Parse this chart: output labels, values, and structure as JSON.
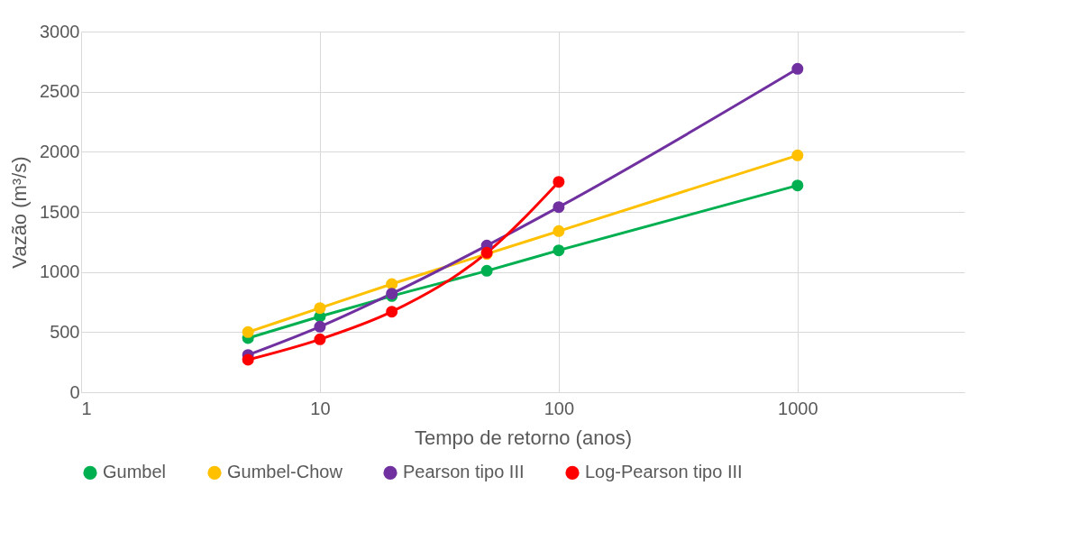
{
  "chart_data": {
    "type": "line",
    "xlabel": "Tempo de retorno (anos)",
    "ylabel": "Vazão (m³/s)",
    "x": [
      5,
      10,
      20,
      50,
      100,
      1000
    ],
    "xlim": [
      1,
      5000
    ],
    "xticks": [
      1,
      10,
      100,
      1000
    ],
    "log": "x",
    "ylim": [
      0,
      3000
    ],
    "yticks": [
      0,
      500,
      1000,
      1500,
      2000,
      2500,
      3000
    ],
    "grid": true,
    "legend": "bottom",
    "marker": "circle",
    "line_style": "solid",
    "series": [
      {
        "name": "Gumbel",
        "color": "#00b050",
        "values": [
          450,
          630,
          800,
          1010,
          1180,
          1720
        ]
      },
      {
        "name": "Gumbel-Chow",
        "color": "#ffc000",
        "values": [
          500,
          700,
          900,
          1150,
          1340,
          1970
        ]
      },
      {
        "name": "Pearson tipo III",
        "color": "#7030a0",
        "values": [
          310,
          545,
          820,
          1220,
          1540,
          2690
        ]
      },
      {
        "name": "Log-Pearson tipo III",
        "color": "#ff0000",
        "values": [
          270,
          440,
          670,
          1160,
          1750,
          null
        ]
      }
    ]
  }
}
